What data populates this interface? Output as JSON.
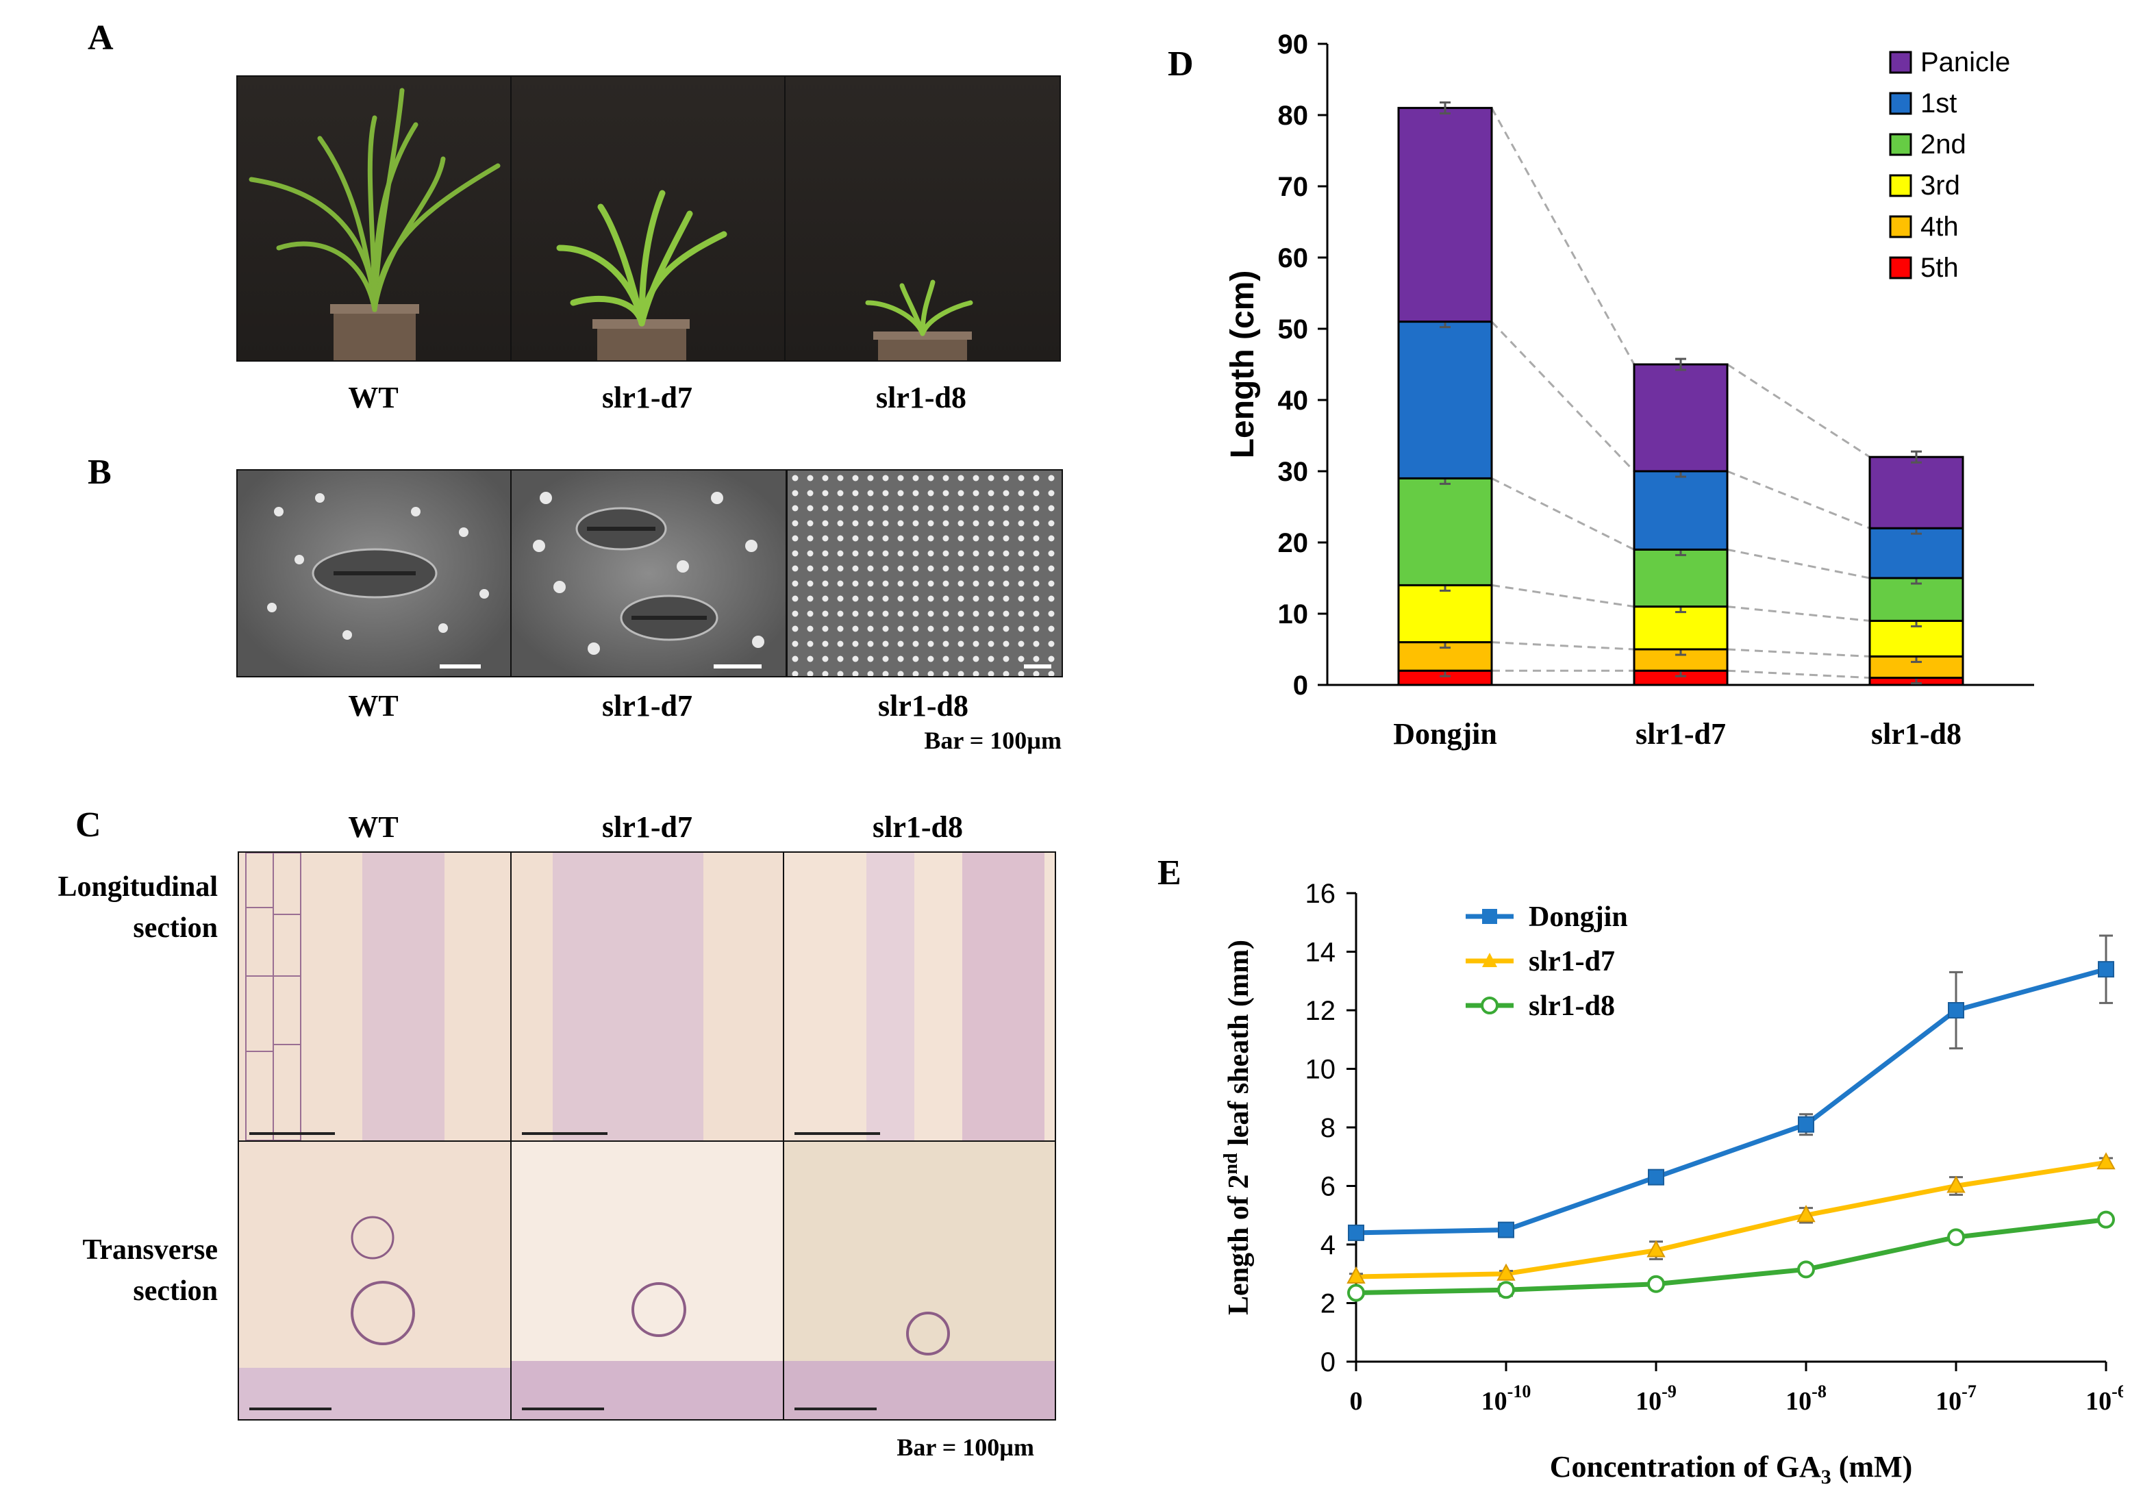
{
  "panels": {
    "A": {
      "letter": "A",
      "labels": [
        "WT",
        "slr1-d7",
        "slr1-d8"
      ]
    },
    "B": {
      "letter": "B",
      "labels": [
        "WT",
        "slr1-d7",
        "slr1-d8"
      ],
      "bar_note": "Bar = 100µm"
    },
    "C": {
      "letter": "C",
      "col_labels": [
        "WT",
        "slr1-d7",
        "slr1-d8"
      ],
      "row_labels": [
        {
          "l1": "Longitudinal",
          "l2": "section"
        },
        {
          "l1": "Transverse",
          "l2": "section"
        }
      ],
      "bar_note": "Bar = 100µm"
    },
    "D": {
      "letter": "D"
    },
    "E": {
      "letter": "E"
    }
  },
  "chart_data": [
    {
      "id": "D",
      "type": "bar",
      "stacked": true,
      "categories": [
        "Dongjin",
        "slr1-d7",
        "slr1-d8"
      ],
      "ylabel": "Length (cm)",
      "ylim": [
        0,
        90
      ],
      "yticks": [
        0,
        10,
        20,
        30,
        40,
        50,
        60,
        70,
        80,
        90
      ],
      "series": [
        {
          "name": "5th",
          "color": "#ff0000",
          "values": [
            2,
            2,
            1
          ]
        },
        {
          "name": "4th",
          "color": "#ffc000",
          "values": [
            4,
            3,
            3
          ]
        },
        {
          "name": "3rd",
          "color": "#ffff00",
          "values": [
            8,
            6,
            5
          ]
        },
        {
          "name": "2nd",
          "color": "#66cc44",
          "values": [
            15,
            8,
            6
          ]
        },
        {
          "name": "1st",
          "color": "#1f6fc8",
          "values": [
            22,
            11,
            7
          ]
        },
        {
          "name": "Panicle",
          "color": "#7030a0",
          "values": [
            30,
            15,
            10
          ]
        }
      ],
      "legend_order": [
        "Panicle",
        "1st",
        "2nd",
        "3rd",
        "4th",
        "5th"
      ]
    },
    {
      "id": "E",
      "type": "line",
      "x": [
        "0",
        "10",
        "10",
        "10",
        "10",
        "10"
      ],
      "x_exponents": [
        "",
        "-10",
        "-9",
        "-8",
        "-7",
        "-6"
      ],
      "xlabel": {
        "main": "Concentration of GA",
        "sub": "3",
        "tail": " (mM)"
      },
      "ylabel": {
        "pre": "Length of 2",
        "sup": "nd",
        "post": " leaf sheath (mm)"
      },
      "ylim": [
        0,
        16
      ],
      "yticks": [
        0,
        2,
        4,
        6,
        8,
        10,
        12,
        14,
        16
      ],
      "series": [
        {
          "name": "Dongjin",
          "color": "#1f78c8",
          "marker": "square",
          "values": [
            4.4,
            4.5,
            6.3,
            8.1,
            12.0,
            13.4
          ],
          "errors": [
            0.2,
            0.15,
            0.15,
            0.35,
            1.3,
            1.15
          ]
        },
        {
          "name": "slr1-d7",
          "color": "#ffc000",
          "marker": "triangle",
          "values": [
            2.9,
            3.0,
            3.8,
            5.0,
            6.0,
            6.8
          ],
          "errors": [
            0.1,
            0.1,
            0.3,
            0.25,
            0.3,
            0.15
          ]
        },
        {
          "name": "slr1-d8",
          "color": "#3aaa35",
          "marker": "circle-open",
          "values": [
            2.35,
            2.45,
            2.65,
            3.15,
            4.25,
            4.85
          ],
          "errors": [
            0.1,
            0.2,
            0.1,
            0.1,
            0.1,
            0.1
          ]
        }
      ]
    }
  ]
}
